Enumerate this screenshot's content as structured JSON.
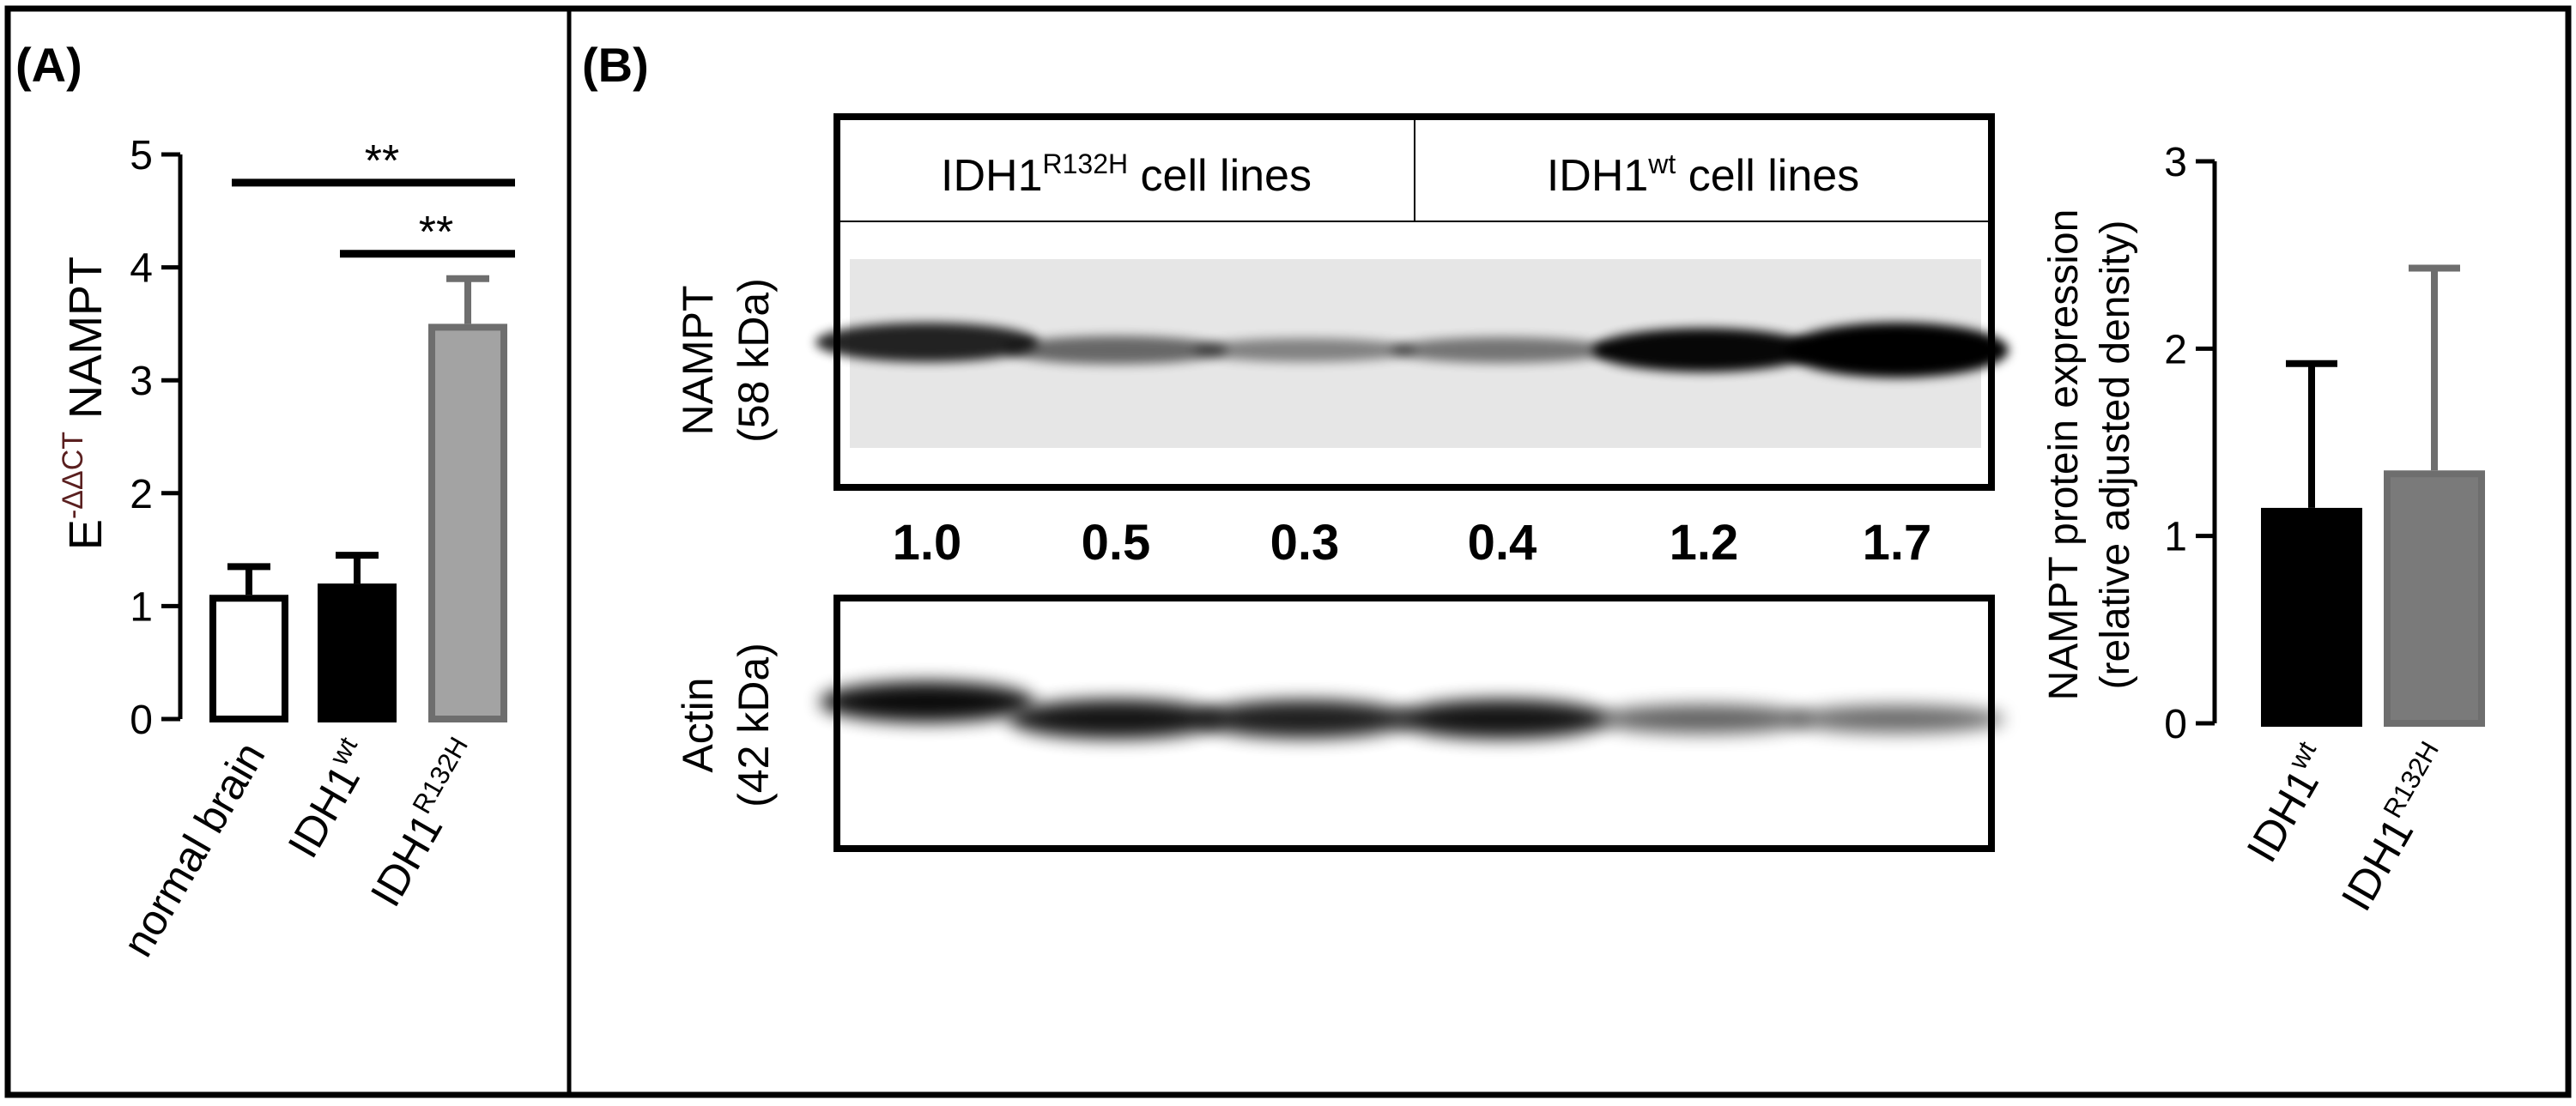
{
  "panels": {
    "a": {
      "label": "(A)"
    },
    "b": {
      "label": "(B)"
    }
  },
  "chart_data": [
    {
      "type": "bar",
      "panel": "A",
      "categories": [
        "normal brain",
        "IDH1wt",
        "IDH1R132H"
      ],
      "category_parts": [
        {
          "base": "normal brain",
          "sup": ""
        },
        {
          "base": "IDH1",
          "sup": "wt"
        },
        {
          "base": "IDH1",
          "sup": "R132H"
        }
      ],
      "values": [
        1.1,
        1.2,
        3.5
      ],
      "errors": [
        0.25,
        0.25,
        0.4
      ],
      "bar_styles": [
        {
          "fill": "#ffffff",
          "stroke": "#000000"
        },
        {
          "fill": "#000000",
          "stroke": "#000000"
        },
        {
          "fill": "#a3a3a3",
          "stroke": "#6e6e6e"
        }
      ],
      "ylabel": "E-ΔΔCT NAMPT",
      "ylabel_parts": {
        "base": "E",
        "sup": "-ΔΔCT",
        "rest": " NAMPT"
      },
      "ylim": [
        0,
        5
      ],
      "yticks": [
        "0",
        "1",
        "2",
        "3",
        "4",
        "5"
      ],
      "significance": [
        {
          "from": 0,
          "to": 2,
          "label": "**",
          "level": 4.75
        },
        {
          "from": 1,
          "to": 2,
          "label": "**",
          "level": 4.12
        }
      ],
      "grid": false
    },
    {
      "type": "bar",
      "panel": "B",
      "categories": [
        "IDH1wt",
        "IDH1R132H"
      ],
      "category_parts": [
        {
          "base": "IDH1",
          "sup": "wt"
        },
        {
          "base": "IDH1",
          "sup": "R132H"
        }
      ],
      "values": [
        1.15,
        1.35
      ],
      "errors": [
        0.77,
        1.08
      ],
      "bar_styles": [
        {
          "fill": "#000000",
          "stroke": "#000000"
        },
        {
          "fill": "#7a7a7a",
          "stroke": "#6e6e6e"
        }
      ],
      "ylabel": "NAMPT protein expression",
      "ylabel2": "(relative adjusted density)",
      "ylim": [
        0,
        3
      ],
      "yticks": [
        "0",
        "1",
        "2",
        "3"
      ],
      "grid": false
    }
  ],
  "blot": {
    "header": {
      "left": {
        "base": "IDH1",
        "sup": "R132H",
        "rest": " cell lines"
      },
      "right": {
        "base": "IDH1",
        "sup": "wt",
        "rest": " cell lines"
      }
    },
    "nampt": {
      "label1": "NAMPT",
      "label2": "(58 kDa)"
    },
    "actin": {
      "label1": "Actin",
      "label2": "(42 kDa)"
    },
    "densities": [
      "1.0",
      "0.5",
      "0.3",
      "0.4",
      "1.2",
      "1.7"
    ],
    "nampt_intensity": [
      1.0,
      0.5,
      0.3,
      0.4,
      1.2,
      1.7
    ],
    "actin_intensity": [
      1.0,
      0.95,
      0.9,
      0.95,
      0.55,
      0.5
    ]
  }
}
